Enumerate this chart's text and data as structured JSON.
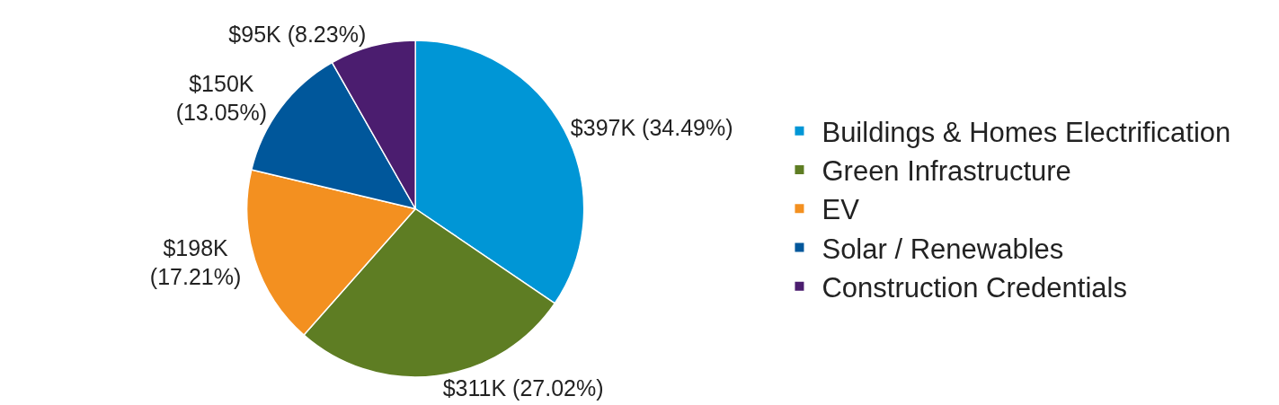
{
  "chart_data": {
    "type": "pie",
    "categories": [
      "Buildings & Homes Electrification",
      "Green Infrastructure",
      "EV",
      "Solar / Renewables",
      "Construction Credentials"
    ],
    "values": [
      34.49,
      27.02,
      17.21,
      13.05,
      8.23
    ],
    "colors": [
      "#0096d6",
      "#5e7d23",
      "#f39020",
      "#00579b",
      "#4b1d6f"
    ],
    "value_labels": [
      "$397K (34.49%)",
      "$311K (27.02%)",
      "$198K\n(17.21%)",
      "$150K\n(13.05%)",
      "$95K (8.23%)"
    ],
    "legend": "right"
  }
}
